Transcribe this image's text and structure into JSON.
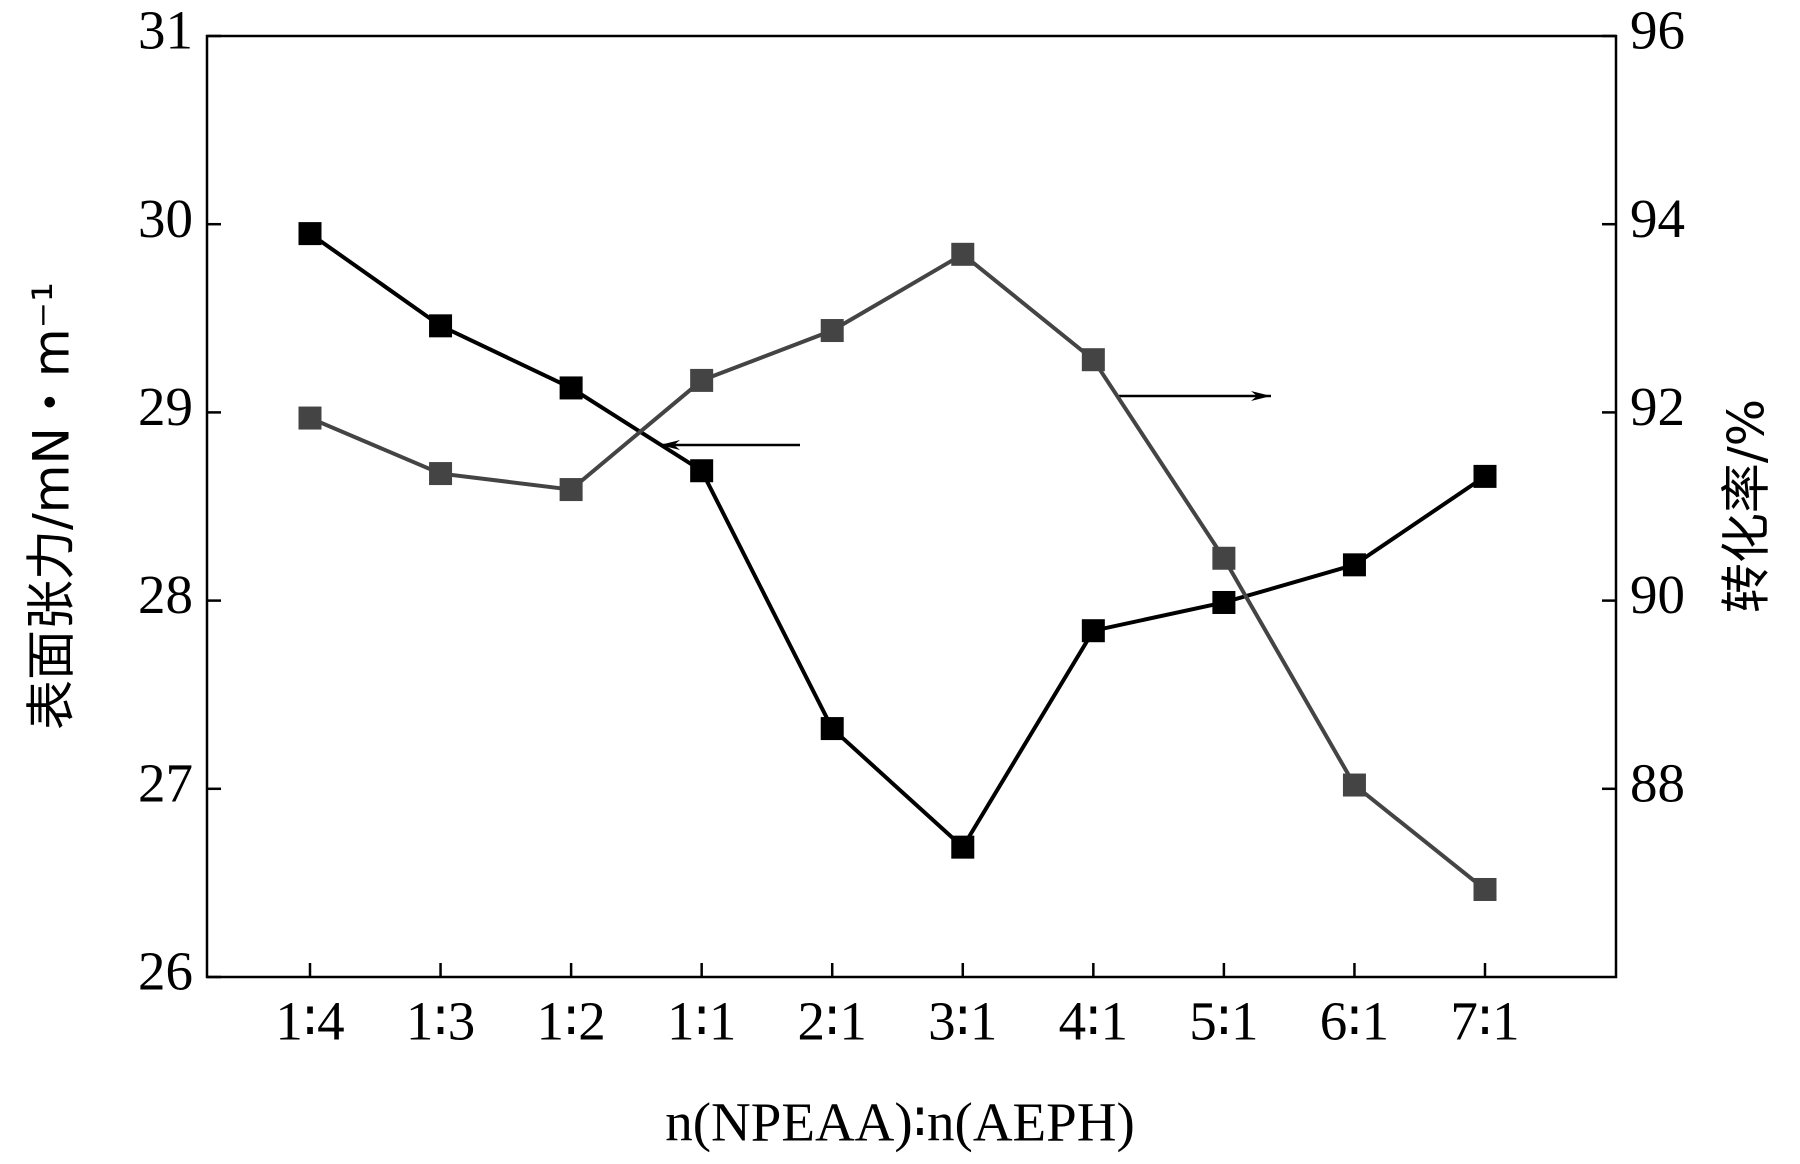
{
  "chart_data": {
    "type": "line",
    "x_label": "n(NPEAA)∶n(AEPH)",
    "y_label": "表面张力/mN・m⁻¹",
    "y2_label": "转化率/%",
    "categories": [
      "1∶4",
      "1∶3",
      "1∶2",
      "1∶1",
      "2∶1",
      "3∶1",
      "4∶1",
      "5∶1",
      "6∶1",
      "7∶1"
    ],
    "series": [
      {
        "color": "#000000",
        "values": [
          29.95,
          29.46,
          29.13,
          28.69,
          27.32,
          26.69,
          27.84,
          27.99,
          28.19,
          28.66
        ]
      },
      {
        "color": "#444444",
        "axis": "y2",
        "values": [
          91.94,
          91.35,
          91.18,
          92.34,
          92.87,
          93.68,
          92.56,
          90.45,
          88.04,
          86.93
        ]
      }
    ],
    "ylim": [
      26,
      31
    ],
    "yticks": [
      26,
      27,
      28,
      29,
      30,
      31
    ],
    "y2lim": [
      86,
      96
    ],
    "y2ticks": [
      88,
      90,
      92,
      94,
      96
    ]
  }
}
